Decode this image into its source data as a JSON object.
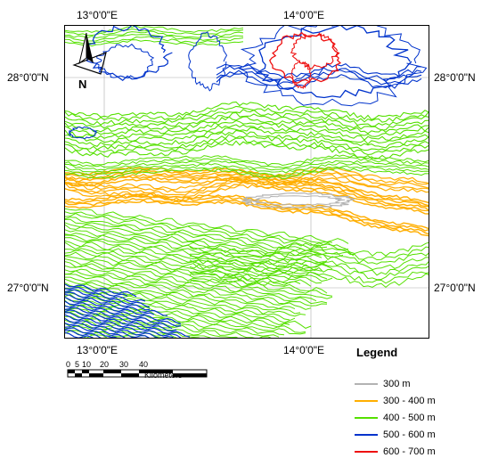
{
  "map": {
    "top_ticks": [
      "13°0'0\"E",
      "14°0'0\"E"
    ],
    "bottom_ticks": [
      "13°0'0\"E",
      "14°0'0\"E"
    ],
    "left_ticks": [
      "28°0'0\"N",
      "27°0'0\"N"
    ],
    "right_ticks": [
      "28°0'0\"N",
      "27°0'0\"N"
    ],
    "north_label": "N"
  },
  "legend": {
    "title": "Legend",
    "items": [
      {
        "label": "300 m",
        "color": "#b3b3b3"
      },
      {
        "label": "300 - 400 m",
        "color": "#ffae00"
      },
      {
        "label": "400 - 500 m",
        "color": "#55e000"
      },
      {
        "label": "500 - 600 m",
        "color": "#0033cc"
      },
      {
        "label": "600 - 700 m",
        "color": "#ee1111"
      }
    ]
  },
  "scale": {
    "ticks": [
      "0",
      "5",
      "10",
      "20",
      "30",
      "40"
    ],
    "unit": "Kilometers"
  }
}
